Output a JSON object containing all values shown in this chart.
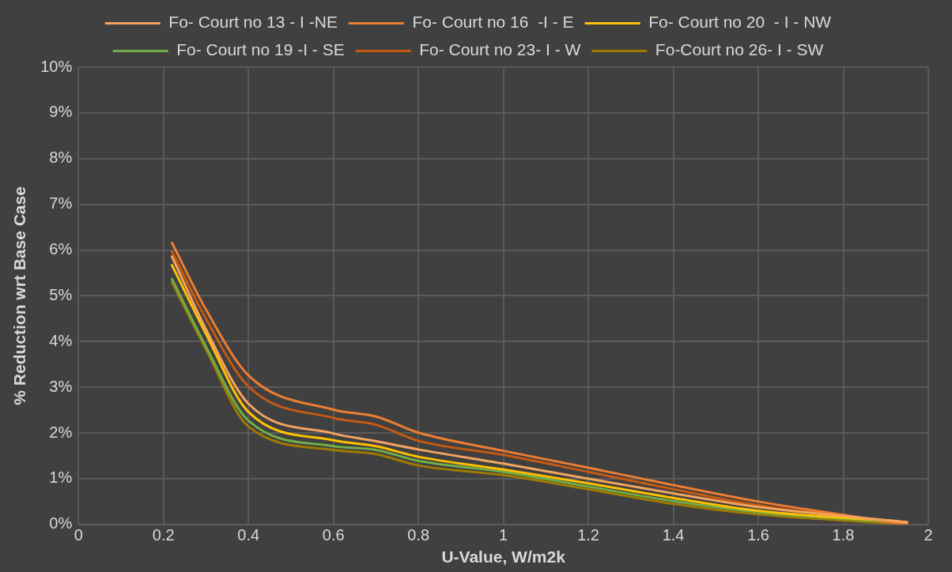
{
  "chart_data": {
    "type": "line",
    "xlabel": "U-Value, W/m2k",
    "ylabel": "% Reduction wrt Base Case",
    "x": [
      0.22,
      0.3,
      0.4,
      0.6,
      0.7,
      0.8,
      1.0,
      1.2,
      1.4,
      1.6,
      1.95
    ],
    "series": [
      {
        "name": "Fo- Court no 13 - I -NE",
        "color": "#f4a460",
        "values": [
          5.86,
          4.27,
          2.64,
          1.99,
          1.82,
          1.64,
          1.33,
          1.0,
          0.68,
          0.38,
          0.05
        ]
      },
      {
        "name": "Fo- Court no 16  -I - E",
        "color": "#ed7d31",
        "values": [
          6.16,
          4.7,
          3.26,
          2.51,
          2.36,
          2.01,
          1.61,
          1.24,
          0.86,
          0.5,
          0.0
        ]
      },
      {
        "name": "Fo- Court no 20  - I - NW",
        "color": "#ffc000",
        "values": [
          5.67,
          4.17,
          2.46,
          1.84,
          1.71,
          1.48,
          1.2,
          0.9,
          0.58,
          0.3,
          0.05
        ]
      },
      {
        "name": "Fo- Court no 19 -I - SE",
        "color": "#70ad47",
        "values": [
          5.37,
          3.89,
          2.27,
          1.71,
          1.63,
          1.39,
          1.15,
          0.83,
          0.51,
          0.27,
          0.03
        ]
      },
      {
        "name": "Fo- Court no 23- I - W",
        "color": "#c55a11",
        "values": [
          5.97,
          4.5,
          3.02,
          2.33,
          2.18,
          1.83,
          1.52,
          1.15,
          0.77,
          0.42,
          0.0
        ]
      },
      {
        "name": "Fo-Court no 26- I - SW",
        "color": "#9e7a00",
        "values": [
          5.3,
          3.83,
          2.14,
          1.63,
          1.54,
          1.29,
          1.08,
          0.77,
          0.45,
          0.22,
          0.0
        ]
      }
    ],
    "xlim": [
      0,
      2
    ],
    "xticks": [
      0,
      0.2,
      0.4,
      0.6,
      0.8,
      1,
      1.2,
      1.4,
      1.6,
      1.8,
      2
    ],
    "ylim": [
      0,
      10
    ],
    "yticks": [
      {
        "value": 0,
        "label": "0%"
      },
      {
        "value": 1,
        "label": "1%"
      },
      {
        "value": 2,
        "label": "2%"
      },
      {
        "value": 3,
        "label": "3%"
      },
      {
        "value": 4,
        "label": "4%"
      },
      {
        "value": 5,
        "label": "5%"
      },
      {
        "value": 6,
        "label": "6%"
      },
      {
        "value": 7,
        "label": "7%"
      },
      {
        "value": 8,
        "label": "8%"
      },
      {
        "value": 9,
        "label": "9%"
      },
      {
        "value": 10,
        "label": "10%"
      }
    ],
    "grid": true,
    "legend": "top",
    "marker": "none",
    "line_style": "solid"
  }
}
